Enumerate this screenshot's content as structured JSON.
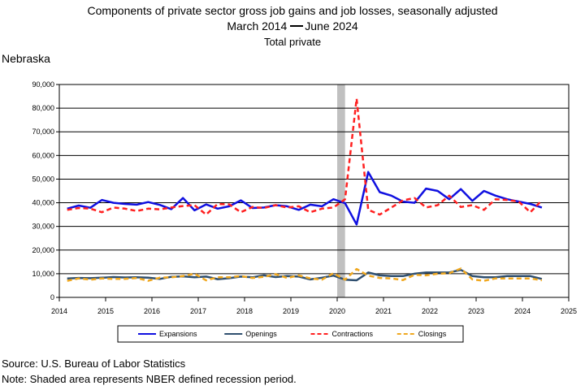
{
  "title": {
    "line1": "Components of private sector gross job gains and job losses, seasonally adjusted",
    "line2_start": "March 2014",
    "line2_end": "June 2024",
    "line3": "Total private"
  },
  "state": "Nebraska",
  "footer": {
    "source": "Source: U.S. Bureau of Labor Statistics",
    "note": "Note: Shaded area represents NBER defined recession period."
  },
  "chart_data": {
    "type": "line",
    "xlim": [
      2014,
      2025
    ],
    "ylim": [
      0,
      90000
    ],
    "x_ticks": [
      2014,
      2015,
      2016,
      2017,
      2018,
      2019,
      2020,
      2021,
      2022,
      2023,
      2024,
      2025
    ],
    "y_ticks": [
      0,
      10000,
      20000,
      30000,
      40000,
      50000,
      60000,
      70000,
      80000,
      90000
    ],
    "y_tick_labels": [
      "0",
      "10,000",
      "20,000",
      "30,000",
      "40,000",
      "50,000",
      "60,000",
      "70,000",
      "80,000",
      "90,000"
    ],
    "grid": "horizontal",
    "legend_position": "bottom",
    "recession_shading": {
      "start": 2020.0,
      "end": 2020.17,
      "color": "#c0c0c0"
    },
    "series": [
      {
        "name": "Expansions",
        "color": "#1010e0",
        "style": "solid",
        "values": [
          37500,
          38800,
          37900,
          41200,
          40000,
          39500,
          39200,
          40300,
          39100,
          37300,
          42000,
          36800,
          39300,
          37500,
          38500,
          41000,
          37800,
          38000,
          39000,
          38500,
          37000,
          39200,
          38500,
          41500,
          39800,
          30800,
          53000,
          44500,
          43000,
          40500,
          40000,
          46000,
          45000,
          41500,
          45800,
          40800,
          45000,
          43000,
          41500,
          40500,
          39500,
          38000
        ]
      },
      {
        "name": "Openings",
        "color": "#2f4f6f",
        "style": "solid",
        "values": [
          8000,
          8200,
          8100,
          8300,
          8600,
          8400,
          8500,
          8300,
          7800,
          8700,
          8900,
          8500,
          8800,
          7700,
          8100,
          8800,
          8500,
          9300,
          8600,
          9000,
          8800,
          7600,
          8300,
          9200,
          7500,
          7200,
          10500,
          9300,
          9000,
          9000,
          10000,
          10500,
          10500,
          10500,
          11600,
          9000,
          8500,
          8500,
          9000,
          9000,
          9000,
          7800
        ]
      },
      {
        "name": "Contractions",
        "color": "#ff2020",
        "style": "dashed",
        "values": [
          37000,
          37800,
          37500,
          36000,
          38000,
          37500,
          36500,
          37500,
          37200,
          38000,
          38600,
          39000,
          35000,
          39500,
          39300,
          36000,
          38200,
          37800,
          39000,
          38000,
          38500,
          36000,
          37500,
          38000,
          41500,
          84000,
          37000,
          35000,
          38000,
          41000,
          42000,
          38000,
          39000,
          43000,
          38200,
          39000,
          37000,
          41500,
          41200,
          40500,
          36000,
          41000
        ]
      },
      {
        "name": "Closings",
        "color": "#f0a820",
        "style": "dashed",
        "values": [
          7000,
          8000,
          7500,
          8000,
          7800,
          7800,
          8200,
          7000,
          8300,
          8500,
          9000,
          10000,
          7200,
          8500,
          8500,
          9000,
          8200,
          8700,
          9800,
          8200,
          9300,
          8000,
          7500,
          10200,
          7500,
          12000,
          9200,
          8200,
          8000,
          7300,
          9500,
          9300,
          10000,
          10200,
          12200,
          7600,
          7000,
          8000,
          8000,
          8000,
          8000,
          7200
        ]
      }
    ]
  }
}
